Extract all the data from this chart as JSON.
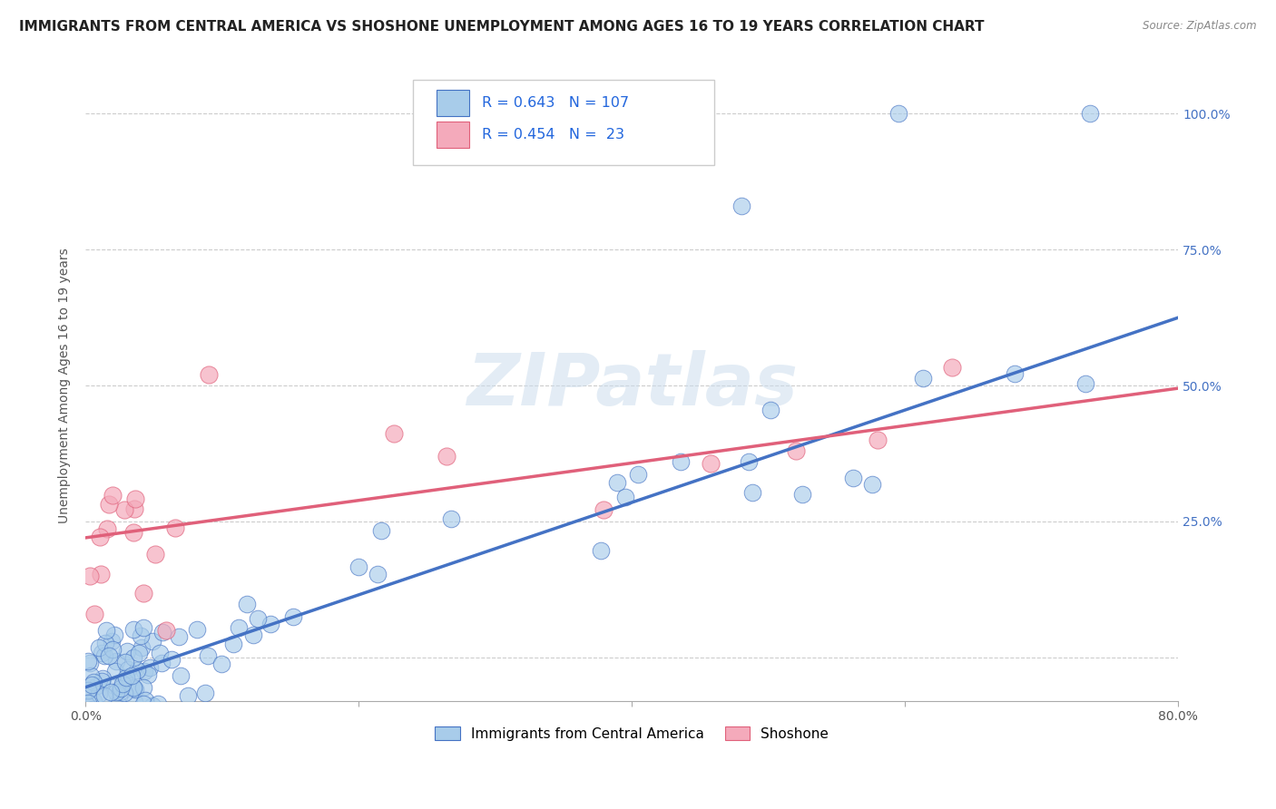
{
  "title": "IMMIGRANTS FROM CENTRAL AMERICA VS SHOSHONE UNEMPLOYMENT AMONG AGES 16 TO 19 YEARS CORRELATION CHART",
  "source": "Source: ZipAtlas.com",
  "ylabel": "Unemployment Among Ages 16 to 19 years",
  "xmin": 0.0,
  "xmax": 0.8,
  "ymin": -0.08,
  "ymax": 1.08,
  "blue_R": 0.643,
  "blue_N": 107,
  "pink_R": 0.454,
  "pink_N": 23,
  "blue_color": "#A8CCEA",
  "pink_color": "#F4AABB",
  "blue_line_color": "#4472C4",
  "pink_line_color": "#E0607A",
  "watermark": "ZIPatlas",
  "legend_label_blue": "Immigrants from Central America",
  "legend_label_pink": "Shoshone",
  "title_fontsize": 11,
  "axis_label_fontsize": 10,
  "tick_fontsize": 10,
  "legend_fontsize": 11,
  "blue_line_x0": 0.0,
  "blue_line_y0": -0.055,
  "blue_line_x1": 0.8,
  "blue_line_y1": 0.625,
  "pink_line_x0": 0.0,
  "pink_line_y0": 0.22,
  "pink_line_x1": 0.8,
  "pink_line_y1": 0.495
}
